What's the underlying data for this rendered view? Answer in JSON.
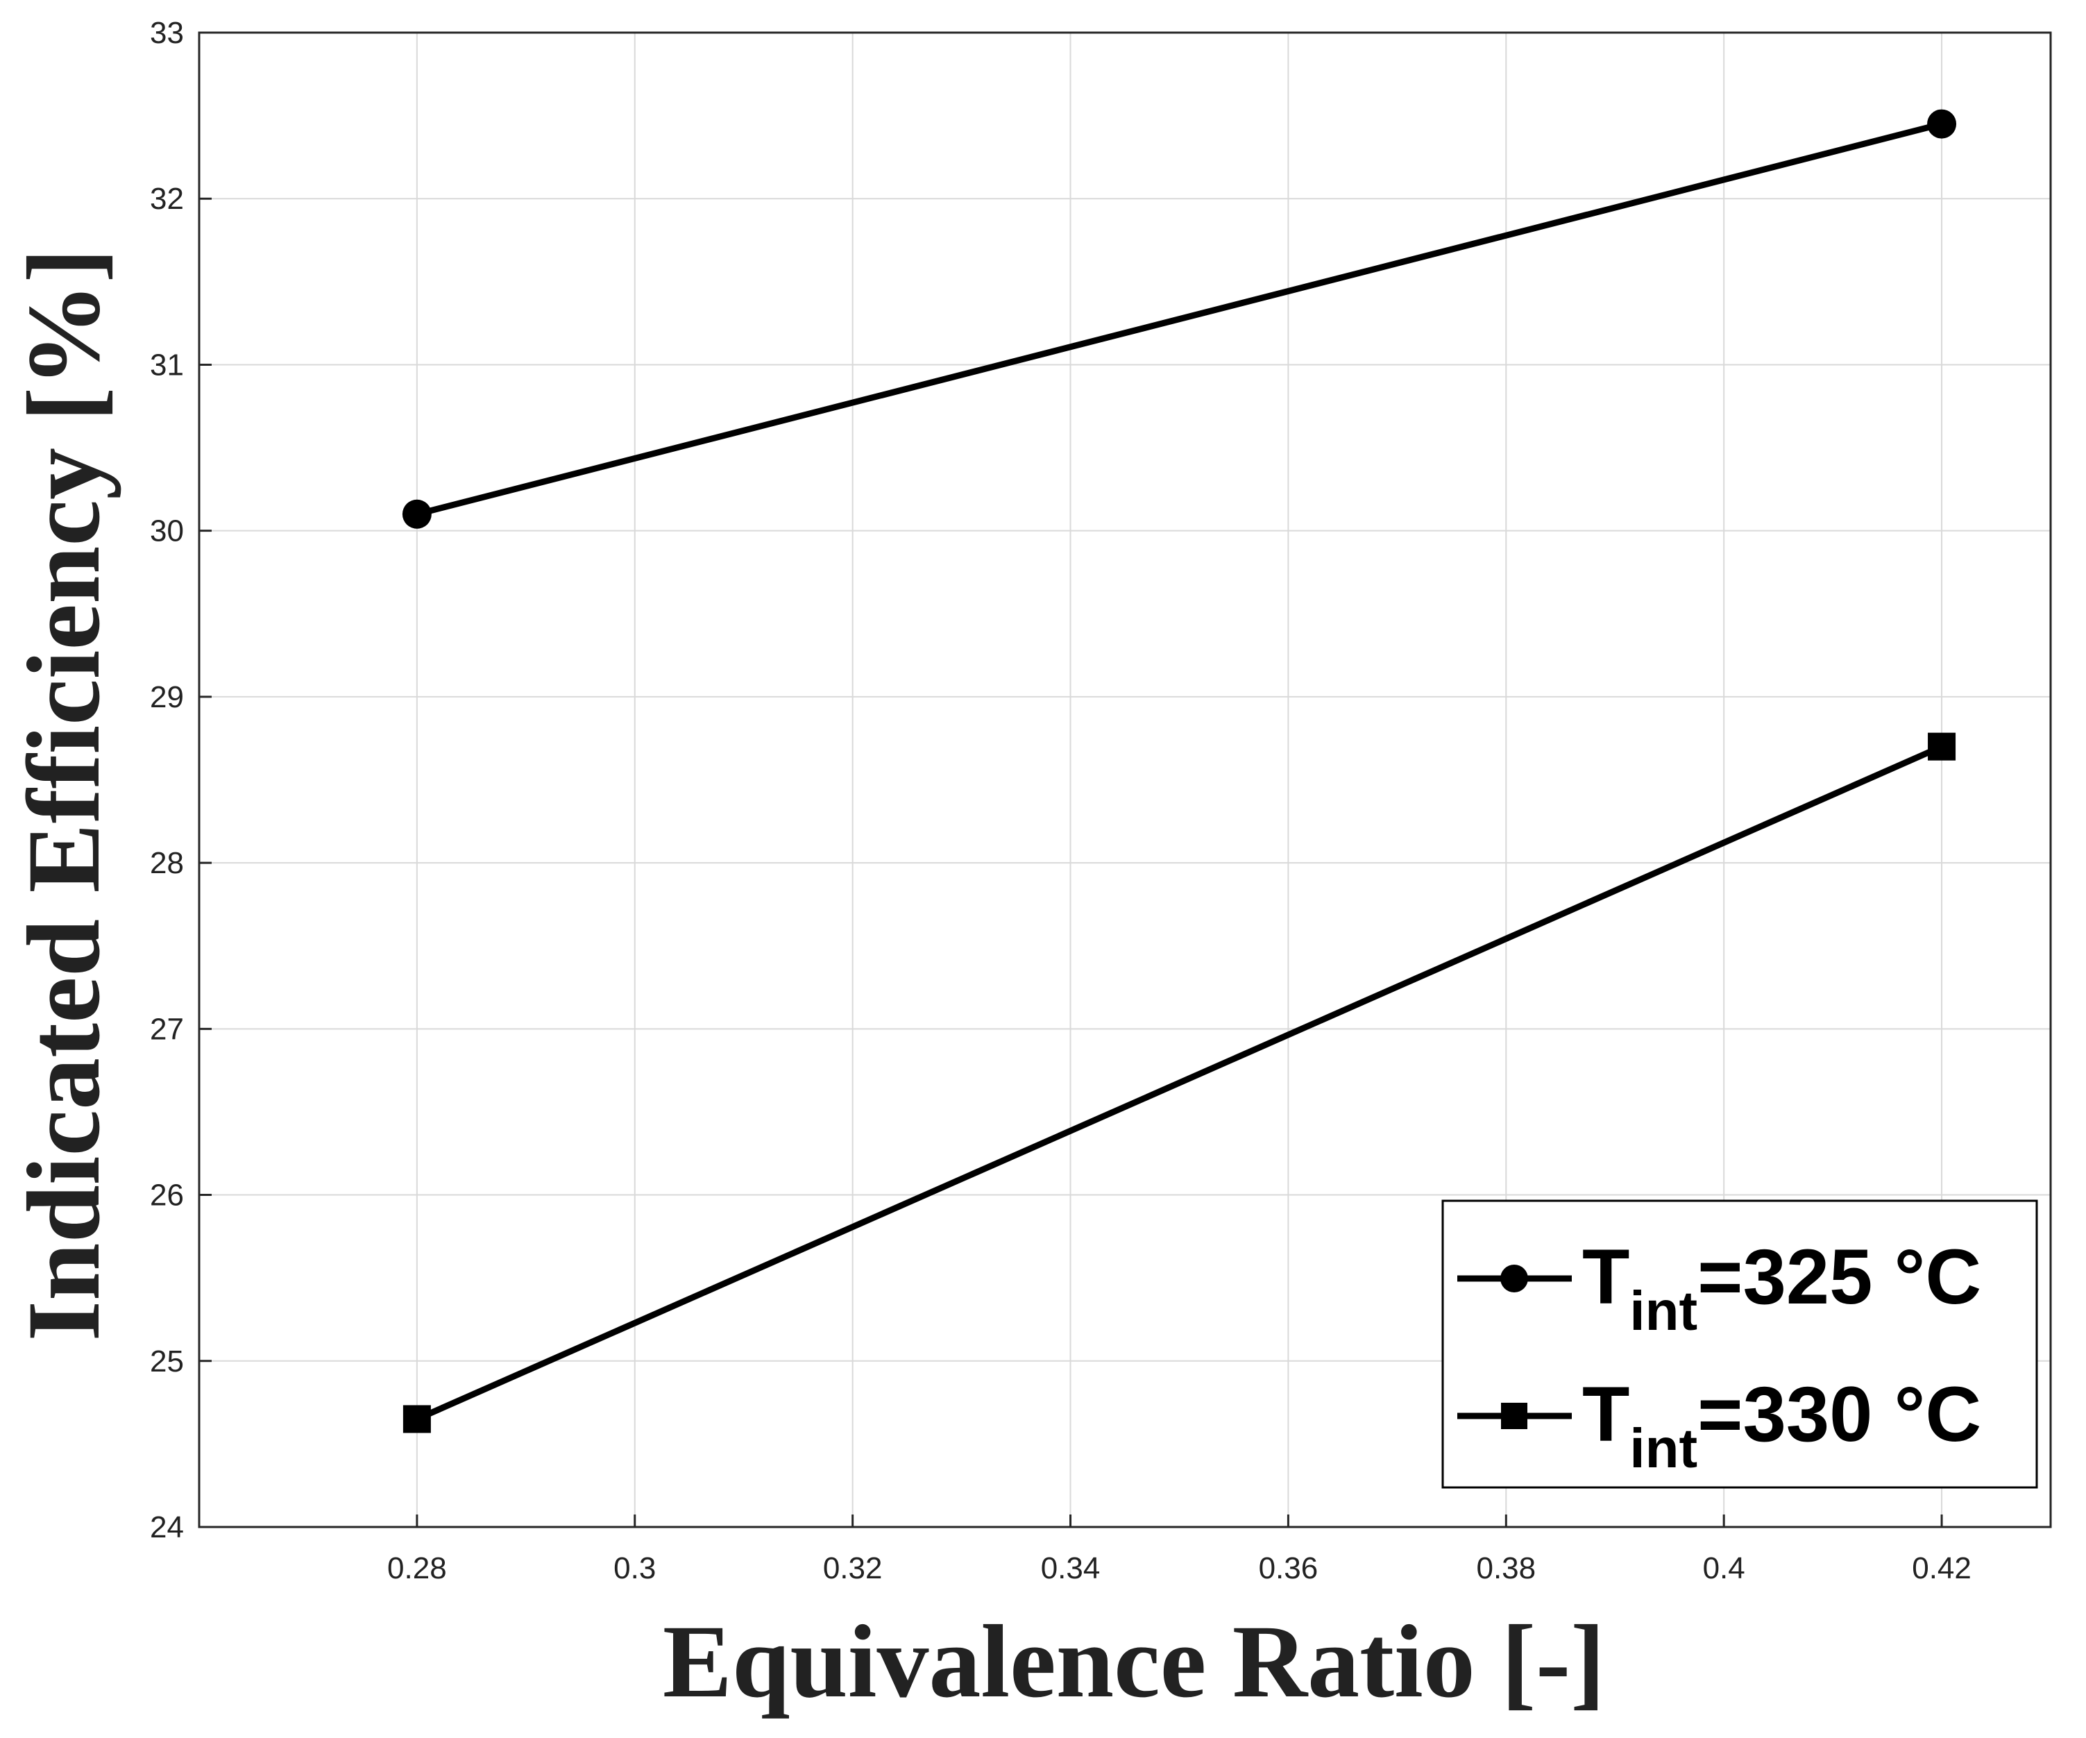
{
  "chart_data": {
    "type": "line",
    "xlabel": "Equivalence Ratio [-]",
    "ylabel": "Indicated Efficiency [%]",
    "xlim": [
      0.26,
      0.43
    ],
    "ylim": [
      24,
      33
    ],
    "xticks": [
      0.28,
      0.3,
      0.32,
      0.34,
      0.36,
      0.38,
      0.4,
      0.42
    ],
    "xtick_labels": [
      "0.28",
      "0.3",
      "0.32",
      "0.34",
      "0.36",
      "0.38",
      "0.4",
      "0.42"
    ],
    "yticks": [
      24,
      25,
      26,
      27,
      28,
      29,
      30,
      31,
      32,
      33
    ],
    "ytick_labels": [
      "24",
      "25",
      "26",
      "27",
      "28",
      "29",
      "30",
      "31",
      "32",
      "33"
    ],
    "grid": true,
    "legend_position": "bottom-right",
    "series": [
      {
        "name": "T_int=325 °C",
        "legend": {
          "base": "T",
          "sub": "int",
          "rest": "=325 °C"
        },
        "marker": "circle",
        "color": "#000000",
        "x": [
          0.28,
          0.42
        ],
        "y": [
          30.1,
          32.45
        ]
      },
      {
        "name": "T_int=330 °C",
        "legend": {
          "base": "T",
          "sub": "int",
          "rest": "=330 °C"
        },
        "marker": "square",
        "color": "#000000",
        "x": [
          0.28,
          0.42
        ],
        "y": [
          24.65,
          28.7
        ]
      }
    ]
  }
}
